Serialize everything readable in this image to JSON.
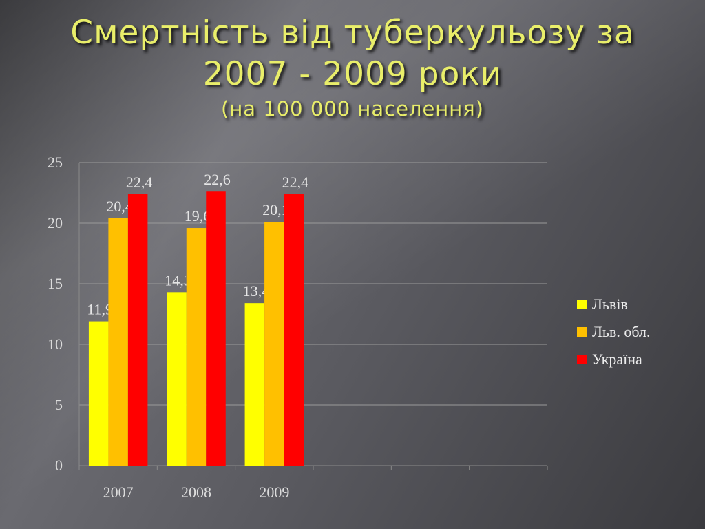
{
  "title": {
    "line1": "Смертність від туберкульозу за",
    "line2": "2007 - 2009 роки",
    "subtitle": "(на 100 000 населення)"
  },
  "legend": [
    {
      "label": "Львів",
      "color": "#ffff00"
    },
    {
      "label": "Льв. обл.",
      "color": "#ffc000"
    },
    {
      "label": "Україна",
      "color": "#ff0000"
    }
  ],
  "chart_data": {
    "type": "bar",
    "categories": [
      "2007",
      "2008",
      "2009"
    ],
    "series": [
      {
        "name": "Львів",
        "values": [
          11.9,
          14.3,
          13.4
        ],
        "labels": [
          "11,9",
          "14,3",
          "13,4"
        ],
        "color": "#ffff00"
      },
      {
        "name": "Льв. обл.",
        "values": [
          20.4,
          19.6,
          20.1
        ],
        "labels": [
          "20,4",
          "19,6",
          "20,1"
        ],
        "color": "#ffc000"
      },
      {
        "name": "Україна",
        "values": [
          22.4,
          22.6,
          22.4
        ],
        "labels": [
          "22,4",
          "22,6",
          "22,4"
        ],
        "color": "#ff0000"
      }
    ],
    "ylim": [
      0,
      25
    ],
    "yticks": [
      "0",
      "5",
      "10",
      "15",
      "20",
      "25"
    ],
    "grid": true,
    "legend_position": "right"
  }
}
